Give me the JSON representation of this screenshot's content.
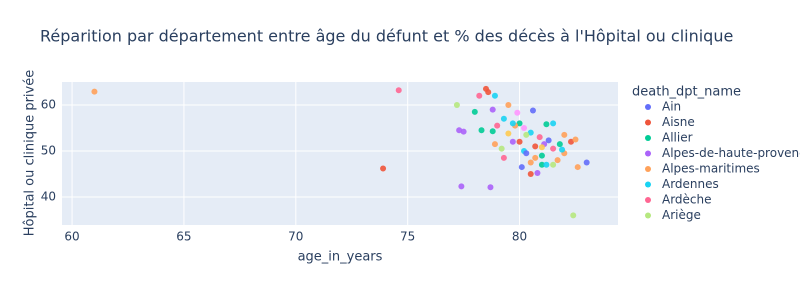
{
  "chart_data": {
    "type": "scatter",
    "title": "Réparition par département entre âge du défunt et % des décès à l'Hôpital ou clinique",
    "x_label": "age_in_years",
    "y_label": "Hôpital ou clinique privée",
    "legend_title": "death_dpt_name",
    "xlim": [
      59.55,
      84.4
    ],
    "ylim": [
      33.9,
      65
    ],
    "xticks": [
      60,
      65,
      70,
      75,
      80
    ],
    "yticks": [
      40,
      50,
      60
    ],
    "grid": true,
    "series": [
      {
        "name": "Ain",
        "color": "#636efa",
        "x": [
          83.0
        ],
        "values": [
          47.5
        ]
      },
      {
        "name": "Aisne",
        "color": "#EF553B",
        "x": [
          73.9
        ],
        "values": [
          46.2
        ]
      },
      {
        "name": "Allier",
        "color": "#00cc96",
        "x": [
          81.0
        ],
        "values": [
          47.0
        ]
      },
      {
        "name": "Alpes-de-haute-provence",
        "color": "#ab63fa",
        "x": [
          77.4
        ],
        "values": [
          42.3
        ]
      },
      {
        "name": "Alpes-maritimes",
        "color": "#FFA15A",
        "x": [
          61.0
        ],
        "values": [
          62.9
        ]
      },
      {
        "name": "Ardennes",
        "color": "#19d3f3",
        "x": [
          80.2
        ],
        "values": [
          50.0
        ]
      },
      {
        "name": "Ardèche",
        "color": "#FF6692",
        "x": [
          74.6
        ],
        "values": [
          63.2
        ]
      },
      {
        "name": "Ariège",
        "color": "#B6E880",
        "x": [
          82.4
        ],
        "values": [
          36.0
        ]
      },
      {
        "color": "#636efa",
        "x": [
          80.6,
          80.3,
          80.1,
          81.3
        ],
        "values": [
          58.8,
          49.5,
          46.5,
          52.3
        ]
      },
      {
        "color": "#EF553B",
        "x": [
          78.5,
          78.6,
          82.3,
          80.0,
          80.7,
          80.5
        ],
        "values": [
          63.5,
          62.8,
          52.0,
          52.0,
          51.0,
          45.0
        ]
      },
      {
        "color": "#00cc96",
        "x": [
          78.0,
          80.0,
          78.3,
          78.8,
          81.2,
          81.8,
          81.0
        ],
        "values": [
          58.5,
          56.0,
          54.5,
          54.3,
          55.8,
          51.5,
          49.0
        ]
      },
      {
        "color": "#ab63fa",
        "x": [
          78.8,
          77.3,
          77.5,
          81.1,
          80.8,
          78.7,
          79.7
        ],
        "values": [
          59.0,
          54.5,
          54.2,
          51.5,
          45.2,
          42.1,
          52.0
        ]
      },
      {
        "color": "#FFA15A",
        "x": [
          79.5,
          79.8,
          82.0,
          82.5,
          80.7,
          81.7,
          82.6,
          80.5,
          82.0,
          78.9
        ],
        "values": [
          60.0,
          55.5,
          53.5,
          52.5,
          48.5,
          48.0,
          46.5,
          47.5,
          49.5,
          51.5
        ]
      },
      {
        "color": "#19d3f3",
        "x": [
          78.9,
          79.3,
          79.7,
          80.5,
          81.5,
          81.2,
          81.9
        ],
        "values": [
          62.0,
          57.0,
          56.0,
          54.0,
          56.0,
          47.0,
          50.3
        ]
      },
      {
        "color": "#FF6692",
        "x": [
          78.2,
          79.0,
          81.5,
          79.3,
          80.9
        ],
        "values": [
          62.0,
          55.5,
          50.5,
          48.5,
          53.0
        ]
      },
      {
        "color": "#B6E880",
        "x": [
          77.2,
          81.5,
          79.2,
          80.3
        ],
        "values": [
          60.0,
          47.0,
          50.5,
          53.5
        ]
      },
      {
        "color": "#FF97FF",
        "x": [
          80.2,
          79.9
        ],
        "values": [
          55.0,
          58.3
        ]
      },
      {
        "color": "#FECB52",
        "x": [
          79.5,
          81.0
        ],
        "values": [
          53.8,
          50.8
        ]
      }
    ]
  }
}
